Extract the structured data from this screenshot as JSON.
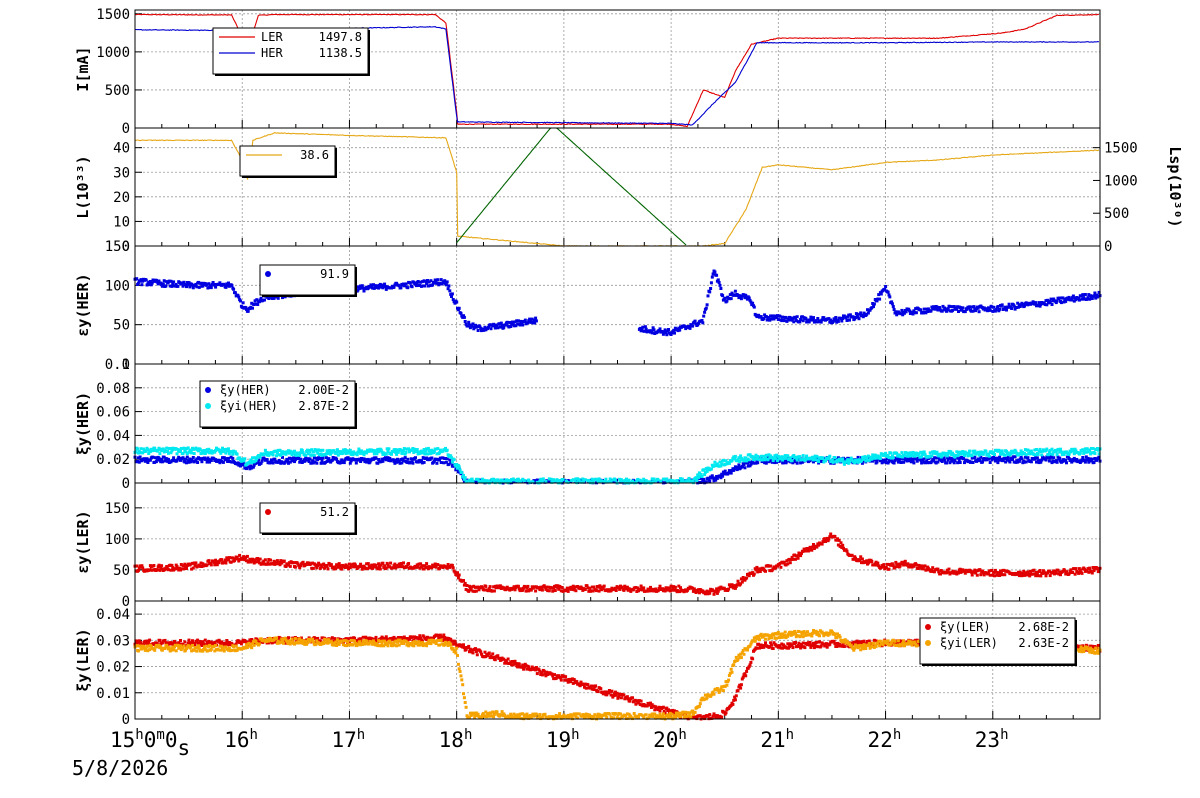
{
  "chart_data": [
    {
      "type": "line",
      "ylabel": "I[mA]",
      "ylim": [
        0,
        1550
      ],
      "yticks": [
        0,
        500,
        1000,
        1500
      ],
      "legend": [
        {
          "name": "LER",
          "value": "1497.8",
          "color": "#e00000"
        },
        {
          "name": "HER",
          "value": "1138.5",
          "color": "#0000d0"
        }
      ],
      "series": [
        {
          "name": "LER",
          "color": "#e00000",
          "style": "line",
          "x": [
            15.0,
            15.9,
            16.0,
            16.05,
            16.15,
            16.3,
            17.0,
            17.8,
            17.9,
            18.0,
            18.01,
            19.0,
            20.0,
            20.15,
            20.3,
            20.5,
            20.6,
            20.75,
            21.0,
            21.5,
            22.0,
            22.5,
            23.1,
            23.3,
            23.6,
            24.0
          ],
          "y": [
            1490,
            1485,
            1200,
            1020,
            1480,
            1490,
            1490,
            1490,
            1380,
            200,
            50,
            50,
            50,
            20,
            500,
            400,
            750,
            1100,
            1180,
            1180,
            1180,
            1180,
            1250,
            1300,
            1480,
            1490
          ]
        },
        {
          "name": "HER",
          "color": "#0000d0",
          "style": "line",
          "x": [
            15.0,
            16.0,
            16.05,
            16.1,
            16.5,
            17.0,
            17.8,
            17.9,
            18.0,
            18.01,
            19.0,
            20.0,
            20.2,
            20.4,
            20.6,
            20.8,
            21.5,
            22.0,
            23.0,
            24.0
          ],
          "y": [
            1290,
            1280,
            1000,
            1290,
            1300,
            1310,
            1330,
            1300,
            150,
            80,
            70,
            60,
            40,
            330,
            600,
            1120,
            1120,
            1120,
            1130,
            1130
          ]
        }
      ]
    },
    {
      "type": "line",
      "ylabel": "L(10³³)",
      "y2label": "Lsp(10³⁰)",
      "ylim": [
        0,
        48
      ],
      "yticks": [
        0,
        10,
        20,
        30,
        40
      ],
      "y2lim": [
        0,
        1800
      ],
      "y2ticks": [
        0,
        500,
        1000,
        1500
      ],
      "legend": [
        {
          "name": "",
          "value": "38.6",
          "color": "#e6a817"
        }
      ],
      "series": [
        {
          "name": "L",
          "color": "#e6a817",
          "style": "line",
          "x": [
            15.0,
            15.9,
            16.0,
            16.05,
            16.1,
            16.3,
            17.0,
            17.9,
            18.0,
            18.01,
            19.0,
            20.0,
            20.3,
            20.5,
            20.7,
            20.85,
            21.0,
            21.5,
            22.0,
            22.5,
            23.0,
            23.5,
            24.0
          ],
          "y": [
            43,
            43,
            35,
            27,
            43,
            46,
            45,
            44,
            30,
            4,
            0,
            0,
            0,
            1,
            15,
            32,
            33,
            31,
            34,
            35,
            37,
            38,
            39
          ]
        },
        {
          "name": "Lsp",
          "color": "#006400",
          "style": "line",
          "axis": "y2",
          "x": [
            18.0,
            18.9,
            20.15
          ],
          "y": [
            50,
            1850,
            0
          ]
        }
      ]
    },
    {
      "type": "scatter",
      "ylabel": "εy(HER)",
      "ylim": [
        0,
        150
      ],
      "yticks": [
        0,
        50,
        100,
        150
      ],
      "legend": [
        {
          "name": "",
          "value": "91.9",
          "color": "#0000e0"
        }
      ],
      "series": [
        {
          "name": "εy(HER)",
          "color": "#0000e0",
          "style": "dense",
          "x": [
            15.0,
            15.5,
            15.9,
            16.0,
            16.05,
            16.2,
            16.5,
            17.0,
            17.5,
            17.9,
            18.0,
            18.1,
            18.2,
            18.5,
            18.7,
            18.75,
            19.7,
            20.0,
            20.3,
            20.4,
            20.5,
            20.6,
            20.75,
            20.8,
            21.0,
            21.5,
            21.8,
            22.0,
            22.1,
            22.5,
            23.0,
            23.5,
            24.0
          ],
          "y": [
            105,
            100,
            100,
            75,
            70,
            85,
            90,
            95,
            100,
            105,
            75,
            50,
            45,
            50,
            55,
            55,
            45,
            40,
            55,
            120,
            80,
            90,
            80,
            60,
            58,
            55,
            62,
            95,
            65,
            70,
            70,
            78,
            88
          ],
          "gaps": [
            [
              18.75,
              19.7
            ]
          ]
        }
      ]
    },
    {
      "type": "scatter",
      "ylabel": "ξy(HER)",
      "ylim": [
        0,
        0.1
      ],
      "yticks": [
        0,
        0.02,
        0.04,
        0.06,
        0.08,
        0.1
      ],
      "ytick_labels": [
        "0",
        "0.02",
        "0.04",
        "0.06",
        "0.08",
        "0.1"
      ],
      "legend": [
        {
          "name": "ξy(HER)",
          "value": "2.00E-2",
          "color": "#0000e0"
        },
        {
          "name": "ξyi(HER)",
          "value": "2.87E-2",
          "color": "#00e8f0"
        }
      ],
      "series": [
        {
          "name": "ξy(HER)",
          "color": "#0000e0",
          "style": "dense",
          "x": [
            15.0,
            15.9,
            16.0,
            16.05,
            16.2,
            17.0,
            17.9,
            18.0,
            18.1,
            20.0,
            20.15,
            20.4,
            20.6,
            20.8,
            21.0,
            22.0,
            23.0,
            24.0
          ],
          "y": [
            0.0195,
            0.0195,
            0.016,
            0.013,
            0.019,
            0.019,
            0.019,
            0.013,
            0.0,
            0.0,
            0.0,
            0.004,
            0.012,
            0.019,
            0.019,
            0.019,
            0.0195,
            0.0195
          ]
        },
        {
          "name": "ξyi(HER)",
          "color": "#00e8f0",
          "style": "dense",
          "x": [
            15.0,
            15.5,
            15.9,
            16.0,
            16.05,
            16.2,
            17.0,
            17.9,
            18.0,
            18.1,
            20.0,
            20.2,
            20.4,
            20.6,
            20.8,
            21.0,
            21.5,
            21.6,
            22.0,
            23.0,
            24.0
          ],
          "y": [
            0.027,
            0.027,
            0.027,
            0.02,
            0.016,
            0.025,
            0.026,
            0.027,
            0.015,
            0.001,
            0.001,
            0.002,
            0.015,
            0.02,
            0.022,
            0.021,
            0.02,
            0.018,
            0.023,
            0.025,
            0.027
          ]
        }
      ]
    },
    {
      "type": "scatter",
      "ylabel": "εy(LER)",
      "ylim": [
        0,
        190
      ],
      "yticks": [
        0,
        50,
        100,
        150
      ],
      "legend": [
        {
          "name": "",
          "value": "51.2",
          "color": "#e00000"
        }
      ],
      "series": [
        {
          "name": "εy(LER)",
          "color": "#e00000",
          "style": "dense",
          "x": [
            15.0,
            15.5,
            16.0,
            16.1,
            16.5,
            17.0,
            17.5,
            17.95,
            18.1,
            18.5,
            19.0,
            19.5,
            20.0,
            20.2,
            20.4,
            20.6,
            20.8,
            21.0,
            21.5,
            21.7,
            22.0,
            22.2,
            22.5,
            23.0,
            23.5,
            24.0
          ],
          "y": [
            52,
            55,
            70,
            65,
            58,
            55,
            57,
            55,
            20,
            20,
            20,
            20,
            20,
            18,
            15,
            25,
            50,
            55,
            105,
            70,
            55,
            60,
            48,
            45,
            45,
            50
          ]
        }
      ]
    },
    {
      "type": "scatter",
      "ylabel": "ξy(LER)",
      "ylim": [
        0,
        0.045
      ],
      "yticks": [
        0,
        0.01,
        0.02,
        0.03,
        0.04
      ],
      "ytick_labels": [
        "0",
        "0.01",
        "0.02",
        "0.03",
        "0.04"
      ],
      "legend": [
        {
          "name": "ξy(LER)",
          "value": "2.68E-2",
          "color": "#e00000"
        },
        {
          "name": "ξyi(LER)",
          "value": "2.63E-2",
          "color": "#f5a300"
        }
      ],
      "series": [
        {
          "name": "ξy(LER)",
          "color": "#e00000",
          "style": "dense",
          "x": [
            15.0,
            16.0,
            16.2,
            17.0,
            17.9,
            18.0,
            20.2,
            20.4,
            20.5,
            20.6,
            20.7,
            20.8,
            21.0,
            22.0,
            23.0,
            24.0
          ],
          "y": [
            0.029,
            0.029,
            0.03,
            0.03,
            0.031,
            0.028,
            0.0,
            0.001,
            0.002,
            0.008,
            0.018,
            0.028,
            0.028,
            0.029,
            0.029,
            0.027
          ]
        },
        {
          "name": "ξyi(LER)",
          "color": "#f5a300",
          "style": "dense",
          "x": [
            15.0,
            16.0,
            16.2,
            17.0,
            17.9,
            18.0,
            18.1,
            18.4,
            18.5,
            19.7,
            20.0,
            20.2,
            20.3,
            20.5,
            20.6,
            20.8,
            21.0,
            21.5,
            21.7,
            22.0,
            23.0,
            24.0
          ],
          "y": [
            0.027,
            0.027,
            0.03,
            0.029,
            0.029,
            0.026,
            0.001,
            0.002,
            0.001,
            0.001,
            0.001,
            0.002,
            0.008,
            0.012,
            0.022,
            0.031,
            0.032,
            0.033,
            0.027,
            0.029,
            0.029,
            0.026
          ]
        }
      ]
    }
  ],
  "x_axis": {
    "xlim": [
      15.0,
      24.0
    ],
    "ticks": [
      15,
      16,
      17,
      18,
      19,
      20,
      21,
      22,
      23
    ],
    "tick_labels": [
      "15",
      "16",
      "17",
      "18",
      "19",
      "20",
      "21",
      "22",
      "23"
    ],
    "first_tick_label": {
      "h": "15",
      "m": "0",
      "s": "0"
    },
    "hour_suffix": "h",
    "date": "5/8/2026"
  }
}
